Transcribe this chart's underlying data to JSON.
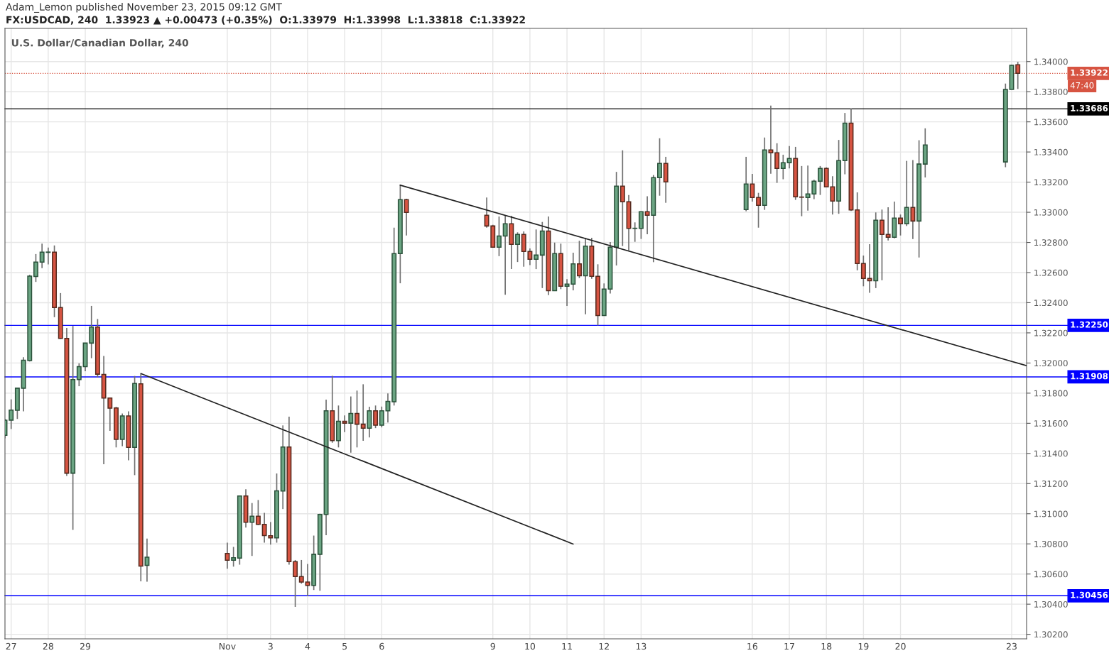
{
  "chart_data": {
    "type": "candlestick",
    "title": "FX:USDCAD, 240  1.33923 ▲ +0.00473 (+0.35%)  O:1.33979  H:1.33998  L:1.33818  C:1.33922",
    "subtitle": "U.S. Dollar/Canadian Dollar, 240",
    "annotations": [
      "Adam_Lemon published November 23, 2015 09:12 GMT",
      "47:40"
    ],
    "x": [
      "2015-10-26T20:00",
      "2015-10-27T00:00",
      "2015-10-27T04:00",
      "2015-10-27T08:00",
      "2015-10-27T12:00",
      "2015-10-27T16:00",
      "2015-10-27T20:00",
      "2015-10-28T00:00",
      "2015-10-28T04:00",
      "2015-10-28T08:00",
      "2015-10-28T12:00",
      "2015-10-28T16:00",
      "2015-10-28T20:00",
      "2015-10-29T00:00",
      "2015-10-29T04:00",
      "2015-10-29T08:00",
      "2015-10-29T12:00",
      "2015-10-29T16:00",
      "2015-10-29T20:00",
      "2015-10-30T00:00",
      "2015-10-30T04:00",
      "2015-10-30T08:00",
      "2015-10-30T12:00",
      "2015-10-30T16:00",
      "2015-11-01T20:00",
      "2015-11-02T00:00",
      "2015-11-02T04:00",
      "2015-11-02T08:00",
      "2015-11-02T12:00",
      "2015-11-02T16:00",
      "2015-11-02T20:00",
      "2015-11-03T00:00",
      "2015-11-03T04:00",
      "2015-11-03T08:00",
      "2015-11-03T12:00",
      "2015-11-03T16:00",
      "2015-11-03T20:00",
      "2015-11-04T00:00",
      "2015-11-04T04:00",
      "2015-11-04T08:00",
      "2015-11-04T12:00",
      "2015-11-04T16:00",
      "2015-11-04T20:00",
      "2015-11-05T00:00",
      "2015-11-05T04:00",
      "2015-11-05T08:00",
      "2015-11-05T12:00",
      "2015-11-05T16:00",
      "2015-11-05T20:00",
      "2015-11-06T00:00",
      "2015-11-06T04:00",
      "2015-11-06T08:00",
      "2015-11-06T12:00",
      "2015-11-06T16:00",
      "2015-11-08T20:00",
      "2015-11-09T00:00",
      "2015-11-09T04:00",
      "2015-11-09T08:00",
      "2015-11-09T12:00",
      "2015-11-09T16:00",
      "2015-11-09T20:00",
      "2015-11-10T00:00",
      "2015-11-10T04:00",
      "2015-11-10T08:00",
      "2015-11-10T12:00",
      "2015-11-10T16:00",
      "2015-11-10T20:00",
      "2015-11-11T00:00",
      "2015-11-11T04:00",
      "2015-11-11T08:00",
      "2015-11-11T12:00",
      "2015-11-11T16:00",
      "2015-11-11T20:00",
      "2015-11-12T00:00",
      "2015-11-12T04:00",
      "2015-11-12T08:00",
      "2015-11-12T12:00",
      "2015-11-12T16:00",
      "2015-11-12T20:00",
      "2015-11-13T00:00",
      "2015-11-13T04:00",
      "2015-11-13T08:00",
      "2015-11-13T12:00",
      "2015-11-13T16:00",
      "2015-11-15T20:00",
      "2015-11-16T00:00",
      "2015-11-16T04:00",
      "2015-11-16T08:00",
      "2015-11-16T12:00",
      "2015-11-16T16:00",
      "2015-11-16T20:00",
      "2015-11-17T00:00",
      "2015-11-17T04:00",
      "2015-11-17T08:00",
      "2015-11-17T12:00",
      "2015-11-17T16:00",
      "2015-11-17T20:00",
      "2015-11-18T00:00",
      "2015-11-18T04:00",
      "2015-11-18T08:00",
      "2015-11-18T12:00",
      "2015-11-18T16:00",
      "2015-11-18T20:00",
      "2015-11-19T00:00",
      "2015-11-19T04:00",
      "2015-11-19T08:00",
      "2015-11-19T12:00",
      "2015-11-19T16:00",
      "2015-11-19T20:00",
      "2015-11-20T00:00",
      "2015-11-20T04:00",
      "2015-11-20T08:00",
      "2015-11-20T12:00",
      "2015-11-20T16:00",
      "2015-11-22T20:00",
      "2015-11-23T00:00",
      "2015-11-23T04:00"
    ],
    "ohlc": [
      [
        1.3152,
        1.3163,
        1.315,
        1.3162
      ],
      [
        1.31621,
        1.31759,
        1.31562,
        1.31688
      ],
      [
        1.31686,
        1.31835,
        1.31629,
        1.31833
      ],
      [
        1.31833,
        1.32038,
        1.31679,
        1.32018
      ],
      [
        1.32016,
        1.32585,
        1.3201,
        1.32576
      ],
      [
        1.32574,
        1.32723,
        1.32538,
        1.32669
      ],
      [
        1.32669,
        1.32792,
        1.32629,
        1.32735
      ],
      [
        1.32734,
        1.32766,
        1.32654,
        1.32736
      ],
      [
        1.32735,
        1.3278,
        1.32304,
        1.32368
      ],
      [
        1.32368,
        1.32464,
        1.3216,
        1.32163
      ],
      [
        1.32163,
        1.32233,
        1.31251,
        1.31269
      ],
      [
        1.31269,
        1.32246,
        1.30893,
        1.3189
      ],
      [
        1.3189,
        1.31998,
        1.31846,
        1.31976
      ],
      [
        1.31976,
        1.32133,
        1.31945,
        1.32132
      ],
      [
        1.32132,
        1.32379,
        1.32032,
        1.32239
      ],
      [
        1.32239,
        1.32292,
        1.31905,
        1.31926
      ],
      [
        1.31924,
        1.32047,
        1.31328,
        1.31768
      ],
      [
        1.31768,
        1.3177,
        1.3155,
        1.317
      ],
      [
        1.31702,
        1.31709,
        1.3144,
        1.31493
      ],
      [
        1.31493,
        1.31665,
        1.31448,
        1.31649
      ],
      [
        1.31649,
        1.31679,
        1.31354,
        1.3144
      ],
      [
        1.3144,
        1.31914,
        1.31256,
        1.31864
      ],
      [
        1.31862,
        1.31928,
        1.30552,
        1.30653
      ],
      [
        1.30657,
        1.30835,
        1.30549,
        1.30712
      ],
      [
        1.30736,
        1.30808,
        1.30635,
        1.30692
      ],
      [
        1.30692,
        1.3078,
        1.30649,
        1.30708
      ],
      [
        1.30706,
        1.31118,
        1.30662,
        1.31118
      ],
      [
        1.31118,
        1.31162,
        1.30908,
        1.30943
      ],
      [
        1.30943,
        1.31071,
        1.3072,
        1.30984
      ],
      [
        1.30984,
        1.31091,
        1.30925,
        1.30929
      ],
      [
        1.30929,
        1.31006,
        1.30808,
        1.30855
      ],
      [
        1.30854,
        1.30945,
        1.30795,
        1.3084
      ],
      [
        1.3084,
        1.31267,
        1.30808,
        1.31152
      ],
      [
        1.31151,
        1.31586,
        1.31031,
        1.31443
      ],
      [
        1.31443,
        1.31644,
        1.30662,
        1.30682
      ],
      [
        1.30682,
        1.30693,
        1.30382,
        1.30583
      ],
      [
        1.30583,
        1.30693,
        1.30536,
        1.30547
      ],
      [
        1.30547,
        1.30667,
        1.30453,
        1.30524
      ],
      [
        1.30524,
        1.30855,
        1.30494,
        1.30731
      ],
      [
        1.30731,
        1.31,
        1.30489,
        1.30995
      ],
      [
        1.30995,
        1.31757,
        1.30858,
        1.31683
      ],
      [
        1.31683,
        1.31915,
        1.31471,
        1.31485
      ],
      [
        1.31485,
        1.31718,
        1.3144,
        1.31613
      ],
      [
        1.31613,
        1.31652,
        1.31542,
        1.31601
      ],
      [
        1.31601,
        1.31778,
        1.31405,
        1.31665
      ],
      [
        1.31665,
        1.31817,
        1.3144,
        1.31594
      ],
      [
        1.31594,
        1.31859,
        1.31484,
        1.31568
      ],
      [
        1.31568,
        1.3171,
        1.31506,
        1.31683
      ],
      [
        1.31683,
        1.31718,
        1.31568,
        1.31587
      ],
      [
        1.31587,
        1.31711,
        1.31573,
        1.31683
      ],
      [
        1.31683,
        1.31798,
        1.31605,
        1.31745
      ],
      [
        1.31743,
        1.32898,
        1.31718,
        1.32726
      ],
      [
        1.32726,
        1.33184,
        1.32529,
        1.33084
      ],
      [
        1.33084,
        1.3309,
        1.32846,
        1.32999
      ],
      [
        1.3298,
        1.33098,
        1.32898,
        1.32909
      ],
      [
        1.32909,
        1.32917,
        1.32768,
        1.32768
      ],
      [
        1.32768,
        1.32972,
        1.32709,
        1.32843
      ],
      [
        1.32843,
        1.32977,
        1.32453,
        1.32924
      ],
      [
        1.32924,
        1.32977,
        1.32623,
        1.32787
      ],
      [
        1.32787,
        1.32867,
        1.3267,
        1.32853
      ],
      [
        1.32853,
        1.32873,
        1.32639,
        1.3274
      ],
      [
        1.3274,
        1.3276,
        1.3265,
        1.32688
      ],
      [
        1.32688,
        1.32886,
        1.32623,
        1.32716
      ],
      [
        1.32716,
        1.32936,
        1.32497,
        1.32876
      ],
      [
        1.32876,
        1.32972,
        1.3245,
        1.3248
      ],
      [
        1.3248,
        1.32799,
        1.3248,
        1.32726
      ],
      [
        1.32726,
        1.32792,
        1.3249,
        1.32509
      ],
      [
        1.32509,
        1.32556,
        1.32379,
        1.32523
      ],
      [
        1.32523,
        1.32732,
        1.32482,
        1.32658
      ],
      [
        1.32658,
        1.32811,
        1.32563,
        1.32579
      ],
      [
        1.32579,
        1.32831,
        1.32323,
        1.32775
      ],
      [
        1.32775,
        1.32831,
        1.32559,
        1.32575
      ],
      [
        1.32575,
        1.32655,
        1.32249,
        1.32315
      ],
      [
        1.32315,
        1.32528,
        1.32315,
        1.3249
      ],
      [
        1.3249,
        1.32802,
        1.32461,
        1.32768
      ],
      [
        1.32768,
        1.33268,
        1.32647,
        1.33173
      ],
      [
        1.33173,
        1.33411,
        1.32776,
        1.3307
      ],
      [
        1.3307,
        1.33114,
        1.32747,
        1.32893
      ],
      [
        1.32893,
        1.32933,
        1.32804,
        1.32894
      ],
      [
        1.32893,
        1.33004,
        1.32823,
        1.33004
      ],
      [
        1.33004,
        1.33106,
        1.32854,
        1.3298
      ],
      [
        1.3298,
        1.33247,
        1.32669,
        1.3323
      ],
      [
        1.3323,
        1.33491,
        1.3311,
        1.33324
      ],
      [
        1.33324,
        1.33368,
        1.33063,
        1.33202
      ],
      [
        1.33018,
        1.33368,
        1.33007,
        1.33188
      ],
      [
        1.33188,
        1.33255,
        1.33071,
        1.33098
      ],
      [
        1.33098,
        1.33129,
        1.32898,
        1.33046
      ],
      [
        1.33046,
        1.33496,
        1.33016,
        1.33414
      ],
      [
        1.33414,
        1.33708,
        1.33256,
        1.33395
      ],
      [
        1.33395,
        1.33458,
        1.33195,
        1.33291
      ],
      [
        1.33291,
        1.33382,
        1.33219,
        1.33329
      ],
      [
        1.33329,
        1.33439,
        1.33291,
        1.33357
      ],
      [
        1.33357,
        1.33434,
        1.33082,
        1.33103
      ],
      [
        1.33101,
        1.33307,
        1.32974,
        1.331
      ],
      [
        1.33098,
        1.3331,
        1.33011,
        1.33122
      ],
      [
        1.33122,
        1.33216,
        1.33087,
        1.33206
      ],
      [
        1.33206,
        1.33307,
        1.33115,
        1.33291
      ],
      [
        1.33291,
        1.33298,
        1.33169,
        1.33169
      ],
      [
        1.33169,
        1.33239,
        1.32985,
        1.33074
      ],
      [
        1.33074,
        1.3348,
        1.3299,
        1.33343
      ],
      [
        1.33343,
        1.33659,
        1.33252,
        1.33591
      ],
      [
        1.33591,
        1.33687,
        1.33008,
        1.33016
      ],
      [
        1.33016,
        1.33132,
        1.32615,
        1.3266
      ],
      [
        1.3266,
        1.32713,
        1.32509,
        1.32561
      ],
      [
        1.32561,
        1.32788,
        1.32466,
        1.32546
      ],
      [
        1.32546,
        1.32999,
        1.32497,
        1.32947
      ],
      [
        1.32947,
        1.33018,
        1.32549,
        1.32853
      ],
      [
        1.32853,
        1.33033,
        1.32813,
        1.32834
      ],
      [
        1.32834,
        1.33071,
        1.32827,
        1.32961
      ],
      [
        1.32961,
        1.32985,
        1.32846,
        1.32924
      ],
      [
        1.32924,
        1.33341,
        1.32909,
        1.33032
      ],
      [
        1.33032,
        1.33346,
        1.32823,
        1.32942
      ],
      [
        1.32942,
        1.33478,
        1.327,
        1.3332
      ],
      [
        1.3332,
        1.33557,
        1.33231,
        1.33447
      ],
      [
        1.33334,
        1.33854,
        1.33299,
        1.33815
      ],
      [
        1.33815,
        1.3398,
        1.33815,
        1.33975
      ],
      [
        1.33979,
        1.33998,
        1.33818,
        1.33922
      ]
    ],
    "colors": [
      "#6ba583",
      "#6ba583",
      "#6ba583",
      "#6ba583",
      "#6ba583",
      "#6ba583",
      "#6ba583",
      "#6ba583",
      "#d75442",
      "#d75442",
      "#d75442",
      "#6ba583",
      "#6ba583",
      "#6ba583",
      "#6ba583",
      "#d75442",
      "#d75442",
      "#d75442",
      "#d75442",
      "#6ba583",
      "#d75442",
      "#6ba583",
      "#d75442",
      "#6ba583",
      "#d75442",
      "#6ba583",
      "#6ba583",
      "#d75442",
      "#6ba583",
      "#d75442",
      "#d75442",
      "#d75442",
      "#6ba583",
      "#6ba583",
      "#d75442",
      "#d75442",
      "#d75442",
      "#d75442",
      "#6ba583",
      "#6ba583",
      "#6ba583",
      "#d75442",
      "#6ba583",
      "#d75442",
      "#6ba583",
      "#d75442",
      "#d75442",
      "#6ba583",
      "#d75442",
      "#6ba583",
      "#6ba583",
      "#6ba583",
      "#6ba583",
      "#d75442",
      "#d75442",
      "#d75442",
      "#6ba583",
      "#6ba583",
      "#d75442",
      "#6ba583",
      "#d75442",
      "#d75442",
      "#6ba583",
      "#6ba583",
      "#d75442",
      "#6ba583",
      "#d75442",
      "#6ba583",
      "#6ba583",
      "#d75442",
      "#6ba583",
      "#d75442",
      "#d75442",
      "#6ba583",
      "#6ba583",
      "#6ba583",
      "#d75442",
      "#d75442",
      "#6ba583",
      "#6ba583",
      "#d75442",
      "#6ba583",
      "#6ba583",
      "#d75442",
      "#6ba583",
      "#d75442",
      "#d75442",
      "#6ba583",
      "#d75442",
      "#d75442",
      "#6ba583",
      "#6ba583",
      "#d75442",
      "#d75442",
      "#6ba583",
      "#6ba583",
      "#6ba583",
      "#d75442",
      "#d75442",
      "#6ba583",
      "#6ba583",
      "#d75442",
      "#d75442",
      "#d75442",
      "#d75442",
      "#6ba583",
      "#d75442",
      "#d75442",
      "#6ba583",
      "#d75442",
      "#6ba583",
      "#d75442",
      "#6ba583",
      "#6ba583",
      "#6ba583",
      "#6ba583",
      "#d75442"
    ],
    "series": [
      {
        "type": "line",
        "color": "#222222",
        "x": [
          "2015-10-30T12:00",
          "2015-11-11T04:00"
        ],
        "values": [
          1.3193,
          1.30799
        ]
      },
      {
        "type": "line",
        "color": "#222222",
        "x": [
          "2015-11-06T12:00",
          "2015-11-23T09:40"
        ],
        "values": [
          1.3318,
          1.31982
        ]
      }
    ],
    "ref_lines": [
      {
        "axis": "y",
        "value": 1.33922,
        "label": "1.33922",
        "color": "#d75442",
        "line_style": "dotted"
      },
      {
        "axis": "y",
        "value": 1.33686,
        "label": "1.33686",
        "color": "#000000"
      },
      {
        "axis": "y",
        "value": 1.3225,
        "label": "1.32250",
        "color": "#0000ff"
      },
      {
        "axis": "y",
        "value": 1.31908,
        "label": "1.31908",
        "color": "#0000ff"
      },
      {
        "axis": "y",
        "value": 1.30456,
        "label": "1.30456",
        "color": "#0000ff"
      }
    ],
    "xlim": [
      "2015-10-26T20:00",
      "2015-11-23T09:40"
    ],
    "xticks": [
      {
        "value": "2015-10-27T00:00",
        "label": "27"
      },
      {
        "value": "2015-10-28T00:00",
        "label": "28"
      },
      {
        "value": "2015-10-29T00:00",
        "label": "29"
      },
      {
        "value": "2015-11-01T20:00",
        "label": "Nov"
      },
      {
        "value": "2015-11-03T00:00",
        "label": "3"
      },
      {
        "value": "2015-11-04T00:00",
        "label": "4"
      },
      {
        "value": "2015-11-05T00:00",
        "label": "5"
      },
      {
        "value": "2015-11-06T00:00",
        "label": "6"
      },
      {
        "value": "2015-11-09T00:00",
        "label": "9"
      },
      {
        "value": "2015-11-10T00:00",
        "label": "10"
      },
      {
        "value": "2015-11-11T00:00",
        "label": "11"
      },
      {
        "value": "2015-11-12T00:00",
        "label": "12"
      },
      {
        "value": "2015-11-13T00:00",
        "label": "13"
      },
      {
        "value": "2015-11-16T00:00",
        "label": "16"
      },
      {
        "value": "2015-11-17T00:00",
        "label": "17"
      },
      {
        "value": "2015-11-18T00:00",
        "label": "18"
      },
      {
        "value": "2015-11-19T00:00",
        "label": "19"
      },
      {
        "value": "2015-11-20T00:00",
        "label": "20"
      },
      {
        "value": "2015-11-23T00:00",
        "label": "23"
      }
    ],
    "ylim": [
      1.3017,
      1.3422
    ],
    "yticks": [
      {
        "value": 1.302,
        "label": "1.30200"
      },
      {
        "value": 1.304,
        "label": "1.30400"
      },
      {
        "value": 1.306,
        "label": "1.30600"
      },
      {
        "value": 1.308,
        "label": "1.30800"
      },
      {
        "value": 1.31,
        "label": "1.31000"
      },
      {
        "value": 1.312,
        "label": "1.31200"
      },
      {
        "value": 1.314,
        "label": "1.31400"
      },
      {
        "value": 1.316,
        "label": "1.31600"
      },
      {
        "value": 1.318,
        "label": "1.31800"
      },
      {
        "value": 1.32,
        "label": "1.32000"
      },
      {
        "value": 1.322,
        "label": "1.32200"
      },
      {
        "value": 1.324,
        "label": "1.32400"
      },
      {
        "value": 1.326,
        "label": "1.32600"
      },
      {
        "value": 1.328,
        "label": "1.32800"
      },
      {
        "value": 1.33,
        "label": "1.33000"
      },
      {
        "value": 1.332,
        "label": "1.33200"
      },
      {
        "value": 1.334,
        "label": "1.33400"
      },
      {
        "value": 1.336,
        "label": "1.33600"
      },
      {
        "value": 1.338,
        "label": "1.33800"
      },
      {
        "value": 1.34,
        "label": "1.34000"
      }
    ],
    "grid": true,
    "legend": false
  }
}
